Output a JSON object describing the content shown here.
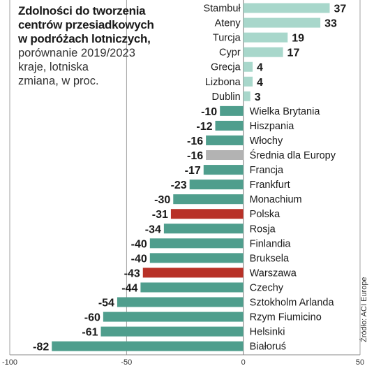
{
  "title": {
    "line1": "Zdolności do tworzenia",
    "line2": "centrów przesiadkowych",
    "line3": "w podróżach lotniczych,",
    "line4": "porównanie 2019/2023",
    "line5": "kraje, lotniska",
    "line6": "zmiana, w proc."
  },
  "source": "Źródło: ACI Europe",
  "colors": {
    "positive": "#a8d7cb",
    "negative": "#4f9e8d",
    "highlight": "#b83127",
    "average": "#b3b3b3",
    "grid": "#8a8a8a"
  },
  "chart_data": {
    "type": "bar",
    "orientation": "horizontal",
    "xlim": [
      -100,
      50
    ],
    "xticks": [
      -100,
      -50,
      0,
      50
    ],
    "categories": [
      "Stambuł",
      "Ateny",
      "Turcja",
      "Cypr",
      "Grecja",
      "Lizbona",
      "Dublin",
      "Wielka Brytania",
      "Hiszpania",
      "Włochy",
      "Średnia dla Europy",
      "Francja",
      "Frankfurt",
      "Monachium",
      "Polska",
      "Rosja",
      "Finlandia",
      "Bruksela",
      "Warszawa",
      "Czechy",
      "Sztokholm Arlanda",
      "Rzym Fiumicino",
      "Helsinki",
      "Białoruś"
    ],
    "values": [
      37,
      33,
      19,
      17,
      4,
      4,
      3,
      -10,
      -12,
      -16,
      -16,
      -17,
      -23,
      -30,
      -31,
      -34,
      -40,
      -40,
      -43,
      -44,
      -54,
      -60,
      -61,
      -82
    ],
    "highlight": [
      "Polska",
      "Warszawa"
    ],
    "average": [
      "Średnia dla Europy"
    ]
  }
}
